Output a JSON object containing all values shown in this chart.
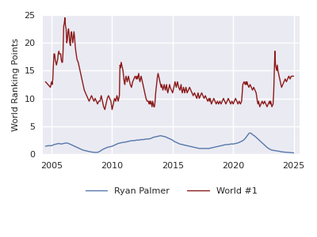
{
  "title": "",
  "ylabel": "World Ranking Points",
  "xlabel": "",
  "xlim": [
    2004.3,
    2025.5
  ],
  "ylim": [
    0,
    25
  ],
  "yticks": [
    0,
    5,
    10,
    15,
    20,
    25
  ],
  "xticks": [
    2005,
    2010,
    2015,
    2020,
    2025
  ],
  "ryan_color": "#5577aa",
  "world1_color": "#8b1a1a",
  "legend_labels": [
    "Ryan Palmer",
    "World #1"
  ],
  "ryan_data": [
    [
      2004.5,
      1.4
    ],
    [
      2004.7,
      1.5
    ],
    [
      2004.9,
      1.5
    ],
    [
      2005.0,
      1.5
    ],
    [
      2005.1,
      1.6
    ],
    [
      2005.2,
      1.7
    ],
    [
      2005.4,
      1.8
    ],
    [
      2005.6,
      1.9
    ],
    [
      2005.8,
      1.8
    ],
    [
      2006.0,
      1.9
    ],
    [
      2006.2,
      2.0
    ],
    [
      2006.4,
      1.9
    ],
    [
      2006.6,
      1.7
    ],
    [
      2006.8,
      1.5
    ],
    [
      2007.0,
      1.3
    ],
    [
      2007.2,
      1.1
    ],
    [
      2007.4,
      0.9
    ],
    [
      2007.6,
      0.7
    ],
    [
      2007.8,
      0.6
    ],
    [
      2008.0,
      0.5
    ],
    [
      2008.2,
      0.4
    ],
    [
      2008.5,
      0.3
    ],
    [
      2008.8,
      0.3
    ],
    [
      2009.0,
      0.5
    ],
    [
      2009.2,
      0.8
    ],
    [
      2009.3,
      0.9
    ],
    [
      2009.4,
      1.0
    ],
    [
      2009.5,
      1.1
    ],
    [
      2009.6,
      1.2
    ],
    [
      2009.8,
      1.3
    ],
    [
      2010.0,
      1.4
    ],
    [
      2010.1,
      1.5
    ],
    [
      2010.2,
      1.6
    ],
    [
      2010.3,
      1.7
    ],
    [
      2010.4,
      1.8
    ],
    [
      2010.5,
      1.9
    ],
    [
      2010.7,
      2.0
    ],
    [
      2010.9,
      2.1
    ],
    [
      2011.0,
      2.1
    ],
    [
      2011.2,
      2.2
    ],
    [
      2011.4,
      2.3
    ],
    [
      2011.6,
      2.4
    ],
    [
      2011.8,
      2.4
    ],
    [
      2012.0,
      2.5
    ],
    [
      2012.2,
      2.5
    ],
    [
      2012.4,
      2.6
    ],
    [
      2012.6,
      2.6
    ],
    [
      2012.8,
      2.7
    ],
    [
      2013.0,
      2.7
    ],
    [
      2013.2,
      2.8
    ],
    [
      2013.4,
      3.0
    ],
    [
      2013.6,
      3.1
    ],
    [
      2013.8,
      3.2
    ],
    [
      2014.0,
      3.3
    ],
    [
      2014.2,
      3.2
    ],
    [
      2014.4,
      3.1
    ],
    [
      2014.6,
      2.9
    ],
    [
      2014.8,
      2.7
    ],
    [
      2015.0,
      2.5
    ],
    [
      2015.1,
      2.3
    ],
    [
      2015.2,
      2.2
    ],
    [
      2015.4,
      2.0
    ],
    [
      2015.5,
      1.9
    ],
    [
      2015.6,
      1.8
    ],
    [
      2015.8,
      1.7
    ],
    [
      2016.0,
      1.6
    ],
    [
      2016.2,
      1.5
    ],
    [
      2016.4,
      1.4
    ],
    [
      2016.6,
      1.3
    ],
    [
      2016.8,
      1.2
    ],
    [
      2017.0,
      1.1
    ],
    [
      2017.2,
      1.0
    ],
    [
      2017.4,
      1.0
    ],
    [
      2017.6,
      1.0
    ],
    [
      2017.8,
      1.0
    ],
    [
      2018.0,
      1.0
    ],
    [
      2018.2,
      1.1
    ],
    [
      2018.4,
      1.2
    ],
    [
      2018.6,
      1.3
    ],
    [
      2018.8,
      1.4
    ],
    [
      2019.0,
      1.5
    ],
    [
      2019.2,
      1.6
    ],
    [
      2019.4,
      1.7
    ],
    [
      2019.6,
      1.7
    ],
    [
      2019.8,
      1.8
    ],
    [
      2020.0,
      1.8
    ],
    [
      2020.2,
      1.9
    ],
    [
      2020.4,
      2.0
    ],
    [
      2020.6,
      2.2
    ],
    [
      2020.8,
      2.4
    ],
    [
      2021.0,
      2.8
    ],
    [
      2021.1,
      3.1
    ],
    [
      2021.2,
      3.4
    ],
    [
      2021.3,
      3.7
    ],
    [
      2021.4,
      3.8
    ],
    [
      2021.5,
      3.7
    ],
    [
      2021.6,
      3.5
    ],
    [
      2021.8,
      3.2
    ],
    [
      2022.0,
      2.8
    ],
    [
      2022.2,
      2.4
    ],
    [
      2022.4,
      2.0
    ],
    [
      2022.6,
      1.6
    ],
    [
      2022.8,
      1.2
    ],
    [
      2023.0,
      0.9
    ],
    [
      2023.2,
      0.7
    ],
    [
      2023.5,
      0.6
    ],
    [
      2023.8,
      0.5
    ],
    [
      2024.0,
      0.4
    ],
    [
      2024.2,
      0.35
    ],
    [
      2024.5,
      0.3
    ],
    [
      2024.8,
      0.25
    ],
    [
      2025.0,
      0.2
    ]
  ],
  "world1_data": [
    [
      2004.5,
      13.0
    ],
    [
      2004.7,
      12.5
    ],
    [
      2004.9,
      12.0
    ],
    [
      2005.0,
      13.0
    ],
    [
      2005.05,
      12.5
    ],
    [
      2005.1,
      13.5
    ],
    [
      2005.15,
      16.0
    ],
    [
      2005.2,
      18.0
    ],
    [
      2005.25,
      18.0
    ],
    [
      2005.3,
      17.0
    ],
    [
      2005.35,
      16.5
    ],
    [
      2005.4,
      16.0
    ],
    [
      2005.45,
      16.5
    ],
    [
      2005.5,
      17.0
    ],
    [
      2005.55,
      18.0
    ],
    [
      2005.6,
      18.5
    ],
    [
      2005.65,
      18.0
    ],
    [
      2005.7,
      18.0
    ],
    [
      2005.75,
      18.0
    ],
    [
      2005.8,
      17.0
    ],
    [
      2005.85,
      16.5
    ],
    [
      2005.9,
      16.5
    ],
    [
      2005.95,
      18.5
    ],
    [
      2006.0,
      23.0
    ],
    [
      2006.05,
      23.5
    ],
    [
      2006.1,
      24.5
    ],
    [
      2006.15,
      23.0
    ],
    [
      2006.2,
      22.5
    ],
    [
      2006.25,
      20.0
    ],
    [
      2006.3,
      20.5
    ],
    [
      2006.35,
      22.0
    ],
    [
      2006.4,
      22.5
    ],
    [
      2006.45,
      21.5
    ],
    [
      2006.5,
      20.0
    ],
    [
      2006.55,
      19.5
    ],
    [
      2006.6,
      21.5
    ],
    [
      2006.65,
      22.0
    ],
    [
      2006.7,
      21.0
    ],
    [
      2006.75,
      20.0
    ],
    [
      2006.8,
      21.0
    ],
    [
      2006.85,
      22.0
    ],
    [
      2006.9,
      21.0
    ],
    [
      2006.95,
      19.5
    ],
    [
      2007.0,
      18.5
    ],
    [
      2007.1,
      17.0
    ],
    [
      2007.2,
      16.5
    ],
    [
      2007.3,
      15.5
    ],
    [
      2007.4,
      14.5
    ],
    [
      2007.5,
      13.5
    ],
    [
      2007.6,
      12.5
    ],
    [
      2007.7,
      11.5
    ],
    [
      2007.8,
      11.0
    ],
    [
      2007.9,
      10.5
    ],
    [
      2008.0,
      10.0
    ],
    [
      2008.1,
      9.5
    ],
    [
      2008.2,
      10.0
    ],
    [
      2008.3,
      10.5
    ],
    [
      2008.4,
      10.0
    ],
    [
      2008.5,
      9.5
    ],
    [
      2008.6,
      10.0
    ],
    [
      2008.7,
      9.5
    ],
    [
      2008.8,
      9.0
    ],
    [
      2008.9,
      9.5
    ],
    [
      2009.0,
      9.5
    ],
    [
      2009.05,
      10.0
    ],
    [
      2009.1,
      10.5
    ],
    [
      2009.15,
      10.0
    ],
    [
      2009.2,
      9.5
    ],
    [
      2009.3,
      8.5
    ],
    [
      2009.4,
      8.0
    ],
    [
      2009.5,
      9.0
    ],
    [
      2009.6,
      10.0
    ],
    [
      2009.7,
      10.5
    ],
    [
      2009.8,
      10.0
    ],
    [
      2009.9,
      9.5
    ],
    [
      2010.0,
      8.0
    ],
    [
      2010.05,
      8.5
    ],
    [
      2010.1,
      9.0
    ],
    [
      2010.15,
      9.5
    ],
    [
      2010.2,
      10.0
    ],
    [
      2010.3,
      9.5
    ],
    [
      2010.35,
      10.0
    ],
    [
      2010.4,
      10.5
    ],
    [
      2010.45,
      10.0
    ],
    [
      2010.5,
      9.5
    ],
    [
      2010.55,
      10.0
    ],
    [
      2010.6,
      10.5
    ],
    [
      2010.65,
      16.0
    ],
    [
      2010.7,
      15.5
    ],
    [
      2010.75,
      16.5
    ],
    [
      2010.8,
      16.0
    ],
    [
      2010.85,
      15.5
    ],
    [
      2010.9,
      15.0
    ],
    [
      2010.95,
      14.0
    ],
    [
      2011.0,
      13.0
    ],
    [
      2011.05,
      12.5
    ],
    [
      2011.1,
      13.5
    ],
    [
      2011.15,
      14.0
    ],
    [
      2011.2,
      13.5
    ],
    [
      2011.25,
      13.0
    ],
    [
      2011.3,
      13.5
    ],
    [
      2011.35,
      14.0
    ],
    [
      2011.4,
      13.5
    ],
    [
      2011.45,
      13.0
    ],
    [
      2011.5,
      12.5
    ],
    [
      2011.6,
      12.0
    ],
    [
      2011.7,
      13.0
    ],
    [
      2011.8,
      13.5
    ],
    [
      2011.9,
      14.0
    ],
    [
      2012.0,
      13.5
    ],
    [
      2012.05,
      14.0
    ],
    [
      2012.1,
      13.5
    ],
    [
      2012.15,
      14.0
    ],
    [
      2012.2,
      14.5
    ],
    [
      2012.25,
      13.5
    ],
    [
      2012.3,
      13.0
    ],
    [
      2012.35,
      13.5
    ],
    [
      2012.4,
      14.0
    ],
    [
      2012.45,
      13.5
    ],
    [
      2012.5,
      13.0
    ],
    [
      2012.6,
      12.0
    ],
    [
      2012.7,
      11.0
    ],
    [
      2012.8,
      10.0
    ],
    [
      2012.9,
      9.5
    ],
    [
      2013.0,
      9.5
    ],
    [
      2013.05,
      9.0
    ],
    [
      2013.1,
      9.5
    ],
    [
      2013.15,
      9.0
    ],
    [
      2013.2,
      9.5
    ],
    [
      2013.25,
      9.0
    ],
    [
      2013.3,
      8.5
    ],
    [
      2013.35,
      9.5
    ],
    [
      2013.4,
      9.0
    ],
    [
      2013.45,
      8.5
    ],
    [
      2013.5,
      8.5
    ],
    [
      2013.55,
      9.5
    ],
    [
      2013.6,
      11.0
    ],
    [
      2013.65,
      12.0
    ],
    [
      2013.7,
      13.0
    ],
    [
      2013.75,
      14.0
    ],
    [
      2013.8,
      14.5
    ],
    [
      2013.85,
      14.0
    ],
    [
      2013.9,
      13.5
    ],
    [
      2013.95,
      13.0
    ],
    [
      2014.0,
      12.5
    ],
    [
      2014.05,
      12.0
    ],
    [
      2014.1,
      12.5
    ],
    [
      2014.15,
      12.0
    ],
    [
      2014.2,
      11.5
    ],
    [
      2014.25,
      12.0
    ],
    [
      2014.3,
      12.5
    ],
    [
      2014.35,
      12.0
    ],
    [
      2014.4,
      11.5
    ],
    [
      2014.45,
      12.0
    ],
    [
      2014.5,
      12.5
    ],
    [
      2014.55,
      11.5
    ],
    [
      2014.6,
      11.0
    ],
    [
      2014.65,
      11.5
    ],
    [
      2014.7,
      12.0
    ],
    [
      2014.75,
      12.5
    ],
    [
      2014.8,
      12.0
    ],
    [
      2014.9,
      11.5
    ],
    [
      2015.0,
      11.0
    ],
    [
      2015.05,
      11.5
    ],
    [
      2015.1,
      12.0
    ],
    [
      2015.15,
      12.5
    ],
    [
      2015.2,
      13.0
    ],
    [
      2015.25,
      12.5
    ],
    [
      2015.3,
      12.0
    ],
    [
      2015.35,
      12.5
    ],
    [
      2015.4,
      13.0
    ],
    [
      2015.45,
      12.5
    ],
    [
      2015.5,
      12.0
    ],
    [
      2015.6,
      11.5
    ],
    [
      2015.65,
      12.0
    ],
    [
      2015.7,
      12.5
    ],
    [
      2015.75,
      11.5
    ],
    [
      2015.8,
      11.0
    ],
    [
      2015.85,
      11.5
    ],
    [
      2015.9,
      12.0
    ],
    [
      2015.95,
      11.5
    ],
    [
      2016.0,
      11.0
    ],
    [
      2016.05,
      11.5
    ],
    [
      2016.1,
      12.0
    ],
    [
      2016.15,
      11.5
    ],
    [
      2016.2,
      11.0
    ],
    [
      2016.3,
      11.5
    ],
    [
      2016.4,
      12.0
    ],
    [
      2016.5,
      11.5
    ],
    [
      2016.6,
      11.0
    ],
    [
      2016.7,
      10.5
    ],
    [
      2016.8,
      11.0
    ],
    [
      2016.9,
      10.5
    ],
    [
      2017.0,
      10.0
    ],
    [
      2017.05,
      10.5
    ],
    [
      2017.1,
      11.0
    ],
    [
      2017.15,
      10.5
    ],
    [
      2017.2,
      10.0
    ],
    [
      2017.3,
      10.5
    ],
    [
      2017.4,
      11.0
    ],
    [
      2017.5,
      10.5
    ],
    [
      2017.6,
      10.0
    ],
    [
      2017.7,
      10.5
    ],
    [
      2017.8,
      10.0
    ],
    [
      2017.9,
      9.5
    ],
    [
      2018.0,
      10.0
    ],
    [
      2018.05,
      9.5
    ],
    [
      2018.1,
      10.0
    ],
    [
      2018.15,
      9.5
    ],
    [
      2018.2,
      9.0
    ],
    [
      2018.3,
      9.5
    ],
    [
      2018.4,
      10.0
    ],
    [
      2018.5,
      9.5
    ],
    [
      2018.6,
      9.0
    ],
    [
      2018.7,
      9.5
    ],
    [
      2018.8,
      9.0
    ],
    [
      2018.9,
      9.5
    ],
    [
      2019.0,
      9.0
    ],
    [
      2019.1,
      9.5
    ],
    [
      2019.2,
      10.0
    ],
    [
      2019.3,
      9.5
    ],
    [
      2019.4,
      9.0
    ],
    [
      2019.5,
      9.5
    ],
    [
      2019.6,
      10.0
    ],
    [
      2019.7,
      9.5
    ],
    [
      2019.8,
      9.0
    ],
    [
      2019.9,
      9.5
    ],
    [
      2020.0,
      9.0
    ],
    [
      2020.1,
      9.5
    ],
    [
      2020.2,
      10.0
    ],
    [
      2020.3,
      9.5
    ],
    [
      2020.4,
      9.0
    ],
    [
      2020.5,
      9.5
    ],
    [
      2020.6,
      9.0
    ],
    [
      2020.7,
      9.5
    ],
    [
      2020.8,
      12.5
    ],
    [
      2020.9,
      13.0
    ],
    [
      2021.0,
      12.5
    ],
    [
      2021.05,
      13.0
    ],
    [
      2021.1,
      12.5
    ],
    [
      2021.15,
      13.0
    ],
    [
      2021.2,
      12.5
    ],
    [
      2021.3,
      12.0
    ],
    [
      2021.4,
      12.5
    ],
    [
      2021.5,
      12.0
    ],
    [
      2021.6,
      11.5
    ],
    [
      2021.7,
      12.0
    ],
    [
      2021.8,
      11.5
    ],
    [
      2021.9,
      11.0
    ],
    [
      2022.0,
      9.5
    ],
    [
      2022.05,
      9.0
    ],
    [
      2022.1,
      9.5
    ],
    [
      2022.15,
      9.0
    ],
    [
      2022.2,
      8.5
    ],
    [
      2022.3,
      9.0
    ],
    [
      2022.4,
      9.5
    ],
    [
      2022.5,
      9.0
    ],
    [
      2022.6,
      9.5
    ],
    [
      2022.7,
      9.0
    ],
    [
      2022.8,
      8.5
    ],
    [
      2022.9,
      9.0
    ],
    [
      2023.0,
      9.5
    ],
    [
      2023.05,
      9.0
    ],
    [
      2023.1,
      9.5
    ],
    [
      2023.15,
      9.0
    ],
    [
      2023.2,
      8.5
    ],
    [
      2023.3,
      9.0
    ],
    [
      2023.35,
      11.0
    ],
    [
      2023.4,
      14.5
    ],
    [
      2023.45,
      18.5
    ],
    [
      2023.5,
      16.0
    ],
    [
      2023.55,
      15.5
    ],
    [
      2023.6,
      15.0
    ],
    [
      2023.65,
      16.0
    ],
    [
      2023.7,
      15.0
    ],
    [
      2023.8,
      14.0
    ],
    [
      2023.9,
      13.0
    ],
    [
      2024.0,
      12.0
    ],
    [
      2024.1,
      12.5
    ],
    [
      2024.2,
      13.0
    ],
    [
      2024.3,
      13.5
    ],
    [
      2024.4,
      13.0
    ],
    [
      2024.5,
      13.5
    ],
    [
      2024.6,
      14.0
    ],
    [
      2024.7,
      13.5
    ],
    [
      2024.8,
      14.0
    ],
    [
      2024.9,
      14.0
    ],
    [
      2025.0,
      14.0
    ]
  ]
}
